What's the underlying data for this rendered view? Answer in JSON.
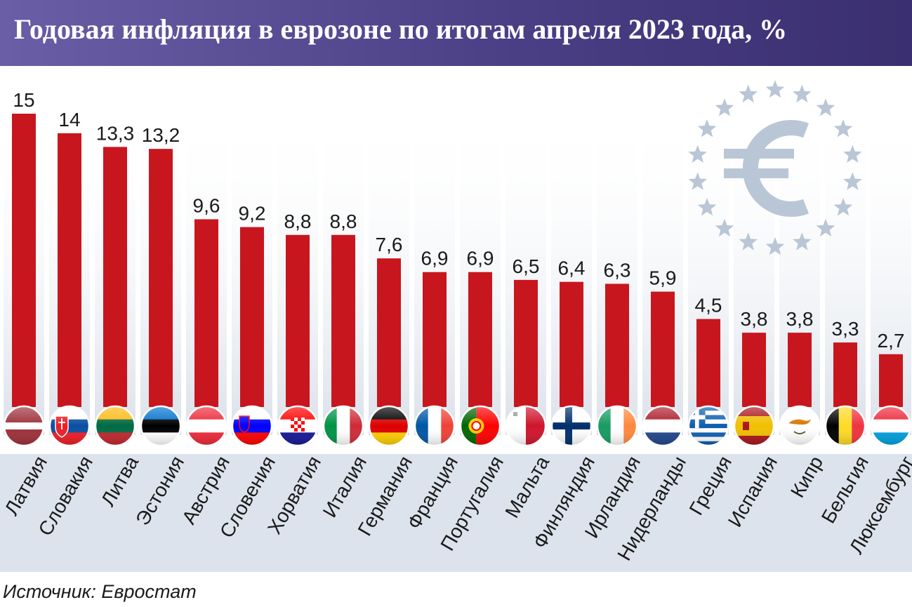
{
  "title": "Годовая инфляция в еврозоне по итогам апреля 2023 года, %",
  "source": "Источник: Евростат",
  "colors": {
    "header_start": "#6a5ea6",
    "header_end": "#3a2f6f",
    "bar": "#c8161e",
    "category_band": "#dde3ec",
    "emblem": "#b9c6d6"
  },
  "emblem_icon": "euro-stars-icon",
  "chart_data": {
    "type": "bar",
    "title": "Годовая инфляция в еврозоне по итогам апреля 2023 года, %",
    "xlabel": "",
    "ylabel": "",
    "ylim": [
      0,
      15
    ],
    "grid": false,
    "legend": "none",
    "categories": [
      "Латвия",
      "Словакия",
      "Литва",
      "Эстония",
      "Австрия",
      "Словения",
      "Хорватия",
      "Италия",
      "Германия",
      "Франция",
      "Португалия",
      "Мальта",
      "Финляндия",
      "Ирландия",
      "Нидерланды",
      "Греция",
      "Испания",
      "Кипр",
      "Бельгия",
      "Люксембург"
    ],
    "values": [
      15,
      14,
      13.3,
      13.2,
      9.6,
      9.2,
      8.8,
      8.8,
      7.6,
      6.9,
      6.9,
      6.5,
      6.4,
      6.3,
      5.9,
      4.5,
      3.8,
      3.8,
      3.3,
      2.7
    ],
    "value_labels": [
      "15",
      "14",
      "13,3",
      "13,2",
      "9,6",
      "9,2",
      "8,8",
      "8,8",
      "7,6",
      "6,9",
      "6,9",
      "6,5",
      "6,4",
      "6,3",
      "5,9",
      "4,5",
      "3,8",
      "3,8",
      "3,3",
      "2,7"
    ],
    "flags": [
      "latvia-flag-icon",
      "slovakia-flag-icon",
      "lithuania-flag-icon",
      "estonia-flag-icon",
      "austria-flag-icon",
      "slovenia-flag-icon",
      "croatia-flag-icon",
      "italy-flag-icon",
      "germany-flag-icon",
      "france-flag-icon",
      "portugal-flag-icon",
      "malta-flag-icon",
      "finland-flag-icon",
      "ireland-flag-icon",
      "netherlands-flag-icon",
      "greece-flag-icon",
      "spain-flag-icon",
      "cyprus-flag-icon",
      "belgium-flag-icon",
      "luxembourg-flag-icon"
    ]
  }
}
